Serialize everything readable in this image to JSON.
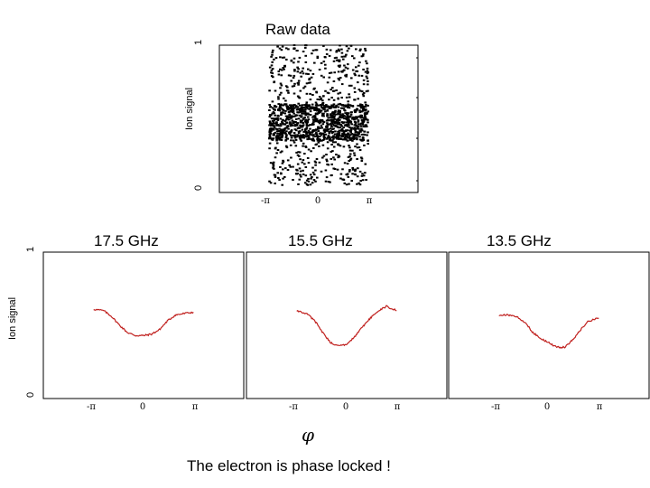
{
  "raw_panel": {
    "title": "Raw data",
    "ylabel": "Ion signal",
    "ytick_top": "1",
    "ytick_bottom": "0",
    "xticks": [
      "-π",
      "0",
      "π"
    ]
  },
  "bottom_panels": {
    "ylabel": "Ion signal",
    "ytick_top": "1",
    "ytick_bottom": "0",
    "xlabel": "φ",
    "xticks": [
      "-π",
      "0",
      "π"
    ],
    "titles": [
      "17.5 GHz",
      "15.5 GHz",
      "13.5 GHz"
    ]
  },
  "caption": "The electron is phase locked !",
  "colors": {
    "curve": "#c0201e",
    "dots": "#000000",
    "frame": "#000000"
  },
  "chart_data": [
    {
      "type": "scatter",
      "title": "Raw data",
      "ylabel": "Ion signal",
      "xlabel": "",
      "xticks": [
        "-π",
        "0",
        "π"
      ],
      "xlim": [
        -6.3,
        6.3
      ],
      "ylim": [
        0,
        1
      ],
      "x_extent": [
        -3.14,
        3.14
      ],
      "y_extent": [
        0.05,
        1.0
      ],
      "note_dense_band": [
        0.35,
        0.6
      ]
    },
    {
      "type": "line",
      "title": "17.5 GHz",
      "ylabel": "Ion signal",
      "xlabel": "φ",
      "xlim": [
        -6.3,
        6.3
      ],
      "ylim": [
        0,
        1
      ],
      "series": [
        {
          "x": [
            -3.14,
            -2.5,
            -2.0,
            -1.5,
            -1.0,
            -0.5,
            0.0,
            0.5,
            1.0,
            1.5,
            2.0,
            2.5,
            3.14
          ],
          "values": [
            0.61,
            0.6,
            0.56,
            0.5,
            0.45,
            0.43,
            0.43,
            0.44,
            0.47,
            0.53,
            0.57,
            0.58,
            0.59
          ]
        }
      ]
    },
    {
      "type": "line",
      "title": "15.5 GHz",
      "ylabel": "Ion signal",
      "xlabel": "φ",
      "xlim": [
        -6.3,
        6.3
      ],
      "ylim": [
        0,
        1
      ],
      "series": [
        {
          "x": [
            -3.14,
            -2.5,
            -2.0,
            -1.5,
            -1.0,
            -0.5,
            0.0,
            0.5,
            1.0,
            1.5,
            2.0,
            2.5,
            3.14
          ],
          "values": [
            0.6,
            0.58,
            0.53,
            0.45,
            0.38,
            0.36,
            0.37,
            0.42,
            0.49,
            0.55,
            0.6,
            0.63,
            0.6
          ]
        }
      ]
    },
    {
      "type": "line",
      "title": "13.5 GHz",
      "ylabel": "Ion signal",
      "xlabel": "φ",
      "xlim": [
        -6.3,
        6.3
      ],
      "ylim": [
        0,
        1
      ],
      "series": [
        {
          "x": [
            -3.14,
            -2.5,
            -2.0,
            -1.5,
            -1.0,
            -0.5,
            0.0,
            0.5,
            1.0,
            1.5,
            2.0,
            2.5,
            3.14
          ],
          "values": [
            0.57,
            0.57,
            0.56,
            0.52,
            0.45,
            0.41,
            0.38,
            0.35,
            0.35,
            0.4,
            0.47,
            0.53,
            0.55
          ]
        }
      ]
    }
  ]
}
